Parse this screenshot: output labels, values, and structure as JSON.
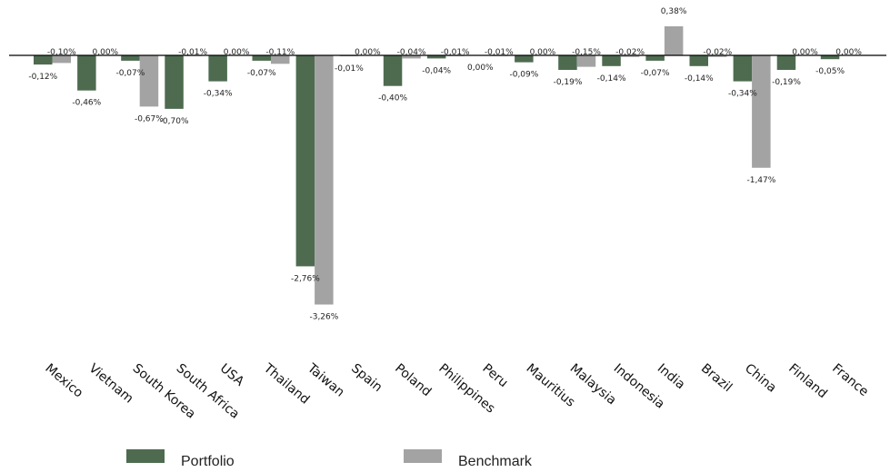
{
  "chart_data": {
    "type": "bar",
    "categories": [
      "Mexico",
      "Vietnam",
      "South Korea",
      "South Africa",
      "USA",
      "Thailand",
      "Taiwan",
      "Spain",
      "Poland",
      "Philippines",
      "Peru",
      "Mauritius",
      "Malaysia",
      "Indonesia",
      "India",
      "Brazil",
      "China",
      "Finland",
      "France"
    ],
    "series": [
      {
        "name": "Portfolio",
        "color": "#4e6b50",
        "values": [
          -0.12,
          -0.46,
          -0.07,
          -0.7,
          -0.34,
          -0.07,
          -2.76,
          -0.01,
          -0.4,
          -0.04,
          0.0,
          -0.09,
          -0.19,
          -0.14,
          -0.07,
          -0.14,
          -0.34,
          -0.19,
          -0.05
        ],
        "labels": [
          "-0,12%",
          "-0,46%",
          "-0,07%",
          "-0,70%",
          "-0,34%",
          "-0,07%",
          "-2,76%",
          "-0,01%",
          "-0,40%",
          "-0,04%",
          "0,00%",
          "-0,09%",
          "-0,19%",
          "-0,14%",
          "-0,07%",
          "-0,14%",
          "-0,34%",
          "-0,19%",
          "-0,05%"
        ]
      },
      {
        "name": "Benchmark",
        "color": "#a3a3a3",
        "values": [
          -0.1,
          0.0,
          -0.67,
          -0.01,
          0.0,
          -0.11,
          -3.26,
          0.0,
          -0.04,
          -0.01,
          -0.01,
          0.0,
          -0.15,
          -0.02,
          0.38,
          -0.02,
          -1.47,
          0.0,
          0.0
        ],
        "labels": [
          "-0,10%",
          "0,00%",
          "-0,67%",
          "-0,01%",
          "0,00%",
          "-0,11%",
          "-3,26%",
          "0,00%",
          "-0,04%",
          "-0,01%",
          "-0,01%",
          "0,00%",
          "-0,15%",
          "-0,02%",
          "0,38%",
          "-0,02%",
          "-1,47%",
          "0,00%",
          "0,00%"
        ]
      }
    ],
    "ylim": [
      -3.26,
      0.38
    ],
    "grid": false,
    "legend_position": "bottom"
  }
}
